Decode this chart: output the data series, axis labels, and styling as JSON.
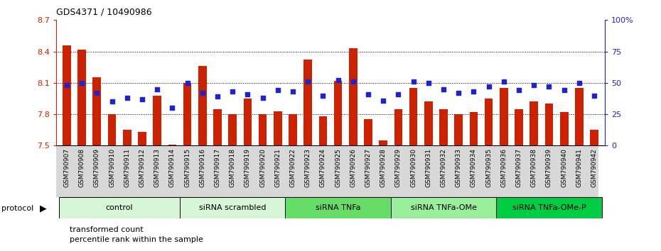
{
  "title": "GDS4371 / 10490986",
  "samples": [
    "GSM790907",
    "GSM790908",
    "GSM790909",
    "GSM790910",
    "GSM790911",
    "GSM790912",
    "GSM790913",
    "GSM790914",
    "GSM790915",
    "GSM790916",
    "GSM790917",
    "GSM790918",
    "GSM790919",
    "GSM790920",
    "GSM790921",
    "GSM790922",
    "GSM790923",
    "GSM790924",
    "GSM790925",
    "GSM790926",
    "GSM790927",
    "GSM790928",
    "GSM790929",
    "GSM790930",
    "GSM790931",
    "GSM790932",
    "GSM790933",
    "GSM790934",
    "GSM790935",
    "GSM790936",
    "GSM790937",
    "GSM790938",
    "GSM790939",
    "GSM790940",
    "GSM790941",
    "GSM790942"
  ],
  "bar_values": [
    8.46,
    8.42,
    8.15,
    7.8,
    7.65,
    7.63,
    7.98,
    7.51,
    8.1,
    8.26,
    7.85,
    7.8,
    7.95,
    7.8,
    7.83,
    7.8,
    8.32,
    7.78,
    8.12,
    8.43,
    7.75,
    7.55,
    7.85,
    8.05,
    7.92,
    7.85,
    7.8,
    7.82,
    7.95,
    8.05,
    7.85,
    7.92,
    7.9,
    7.82,
    8.05,
    7.65
  ],
  "percentile_values": [
    48,
    50,
    42,
    35,
    38,
    37,
    45,
    30,
    50,
    42,
    39,
    43,
    41,
    38,
    44,
    43,
    51,
    40,
    52,
    51,
    41,
    36,
    41,
    51,
    50,
    45,
    42,
    43,
    47,
    51,
    44,
    48,
    47,
    44,
    50,
    40
  ],
  "groups": [
    {
      "label": "control",
      "start": 0,
      "end": 8,
      "color": "#d6f5d6"
    },
    {
      "label": "siRNA scrambled",
      "start": 8,
      "end": 15,
      "color": "#d6f5d6"
    },
    {
      "label": "siRNA TNFa",
      "start": 15,
      "end": 22,
      "color": "#66dd66"
    },
    {
      "label": "siRNA TNFa-OMe",
      "start": 22,
      "end": 29,
      "color": "#99ee99"
    },
    {
      "label": "siRNA TNFa-OMe-P",
      "start": 29,
      "end": 36,
      "color": "#00cc44"
    }
  ],
  "ylim_left": [
    7.5,
    8.7
  ],
  "ylim_right": [
    0,
    100
  ],
  "bar_color": "#cc2200",
  "dot_color": "#2222cc",
  "bar_width": 0.55,
  "xtick_bg": "#d0d0d0"
}
